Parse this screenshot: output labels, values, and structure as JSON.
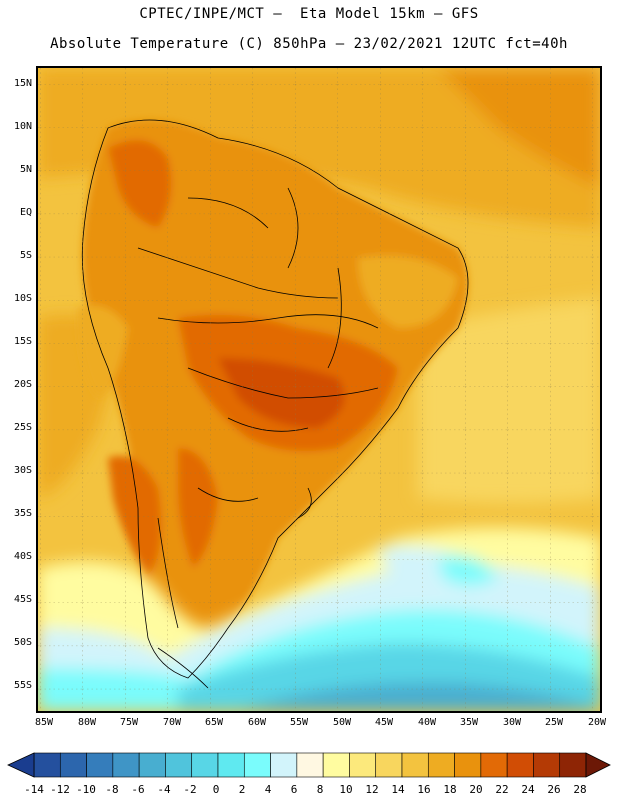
{
  "header": {
    "line1": "CPTEC/INPE/MCT –  Eta Model 15km – GFS",
    "line2": "Absolute Temperature (C) 850hPa – 23/02/2021 12UTC fct=40h"
  },
  "map": {
    "lat_labels": [
      "15N",
      "10N",
      "5N",
      "EQ",
      "5S",
      "10S",
      "15S",
      "20S",
      "25S",
      "30S",
      "35S",
      "40S",
      "45S",
      "50S",
      "55S"
    ],
    "lon_labels": [
      "85W",
      "80W",
      "75W",
      "70W",
      "65W",
      "60W",
      "55W",
      "50W",
      "45W",
      "40W",
      "35W",
      "30W",
      "25W",
      "20W"
    ]
  },
  "colorbar": {
    "labels": [
      "-14",
      "-12",
      "-10",
      "-8",
      "-6",
      "-4",
      "-2",
      "0",
      "2",
      "4",
      "6",
      "8",
      "10",
      "12",
      "14",
      "16",
      "18",
      "20",
      "22",
      "24",
      "26",
      "28"
    ],
    "colors": [
      "#1a3d8f",
      "#24509e",
      "#2c66ad",
      "#357dbb",
      "#3f95c6",
      "#48aed0",
      "#50c4dc",
      "#58d6e6",
      "#5fe9f0",
      "#7afcfc",
      "#d2f4fb",
      "#fff8e2",
      "#fffca0",
      "#fce97c",
      "#f8d65e",
      "#f3c33f",
      "#eeac22",
      "#e9920d",
      "#e26a06",
      "#d14d05",
      "#b43a05",
      "#8e2505",
      "#6c1806"
    ]
  }
}
